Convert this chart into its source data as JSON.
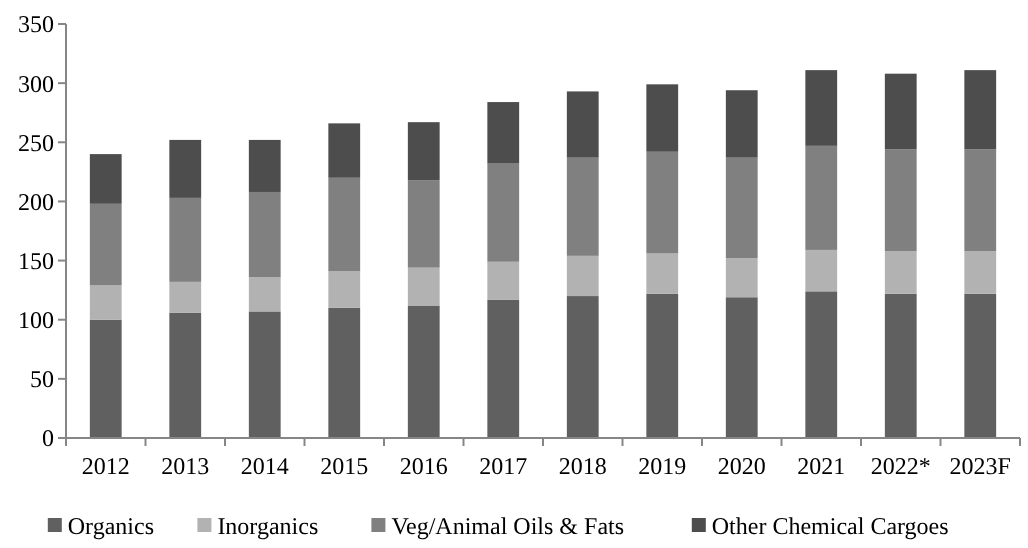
{
  "chart_data": {
    "type": "bar",
    "stacked": true,
    "categories": [
      "2012",
      "2013",
      "2014",
      "2015",
      "2016",
      "2017",
      "2018",
      "2019",
      "2020",
      "2021",
      "2022*",
      "2023F"
    ],
    "series": [
      {
        "name": "Organics",
        "color": "#606060",
        "values": [
          100,
          106,
          107,
          110,
          112,
          117,
          120,
          122,
          119,
          124,
          122,
          122
        ]
      },
      {
        "name": "Inorganics",
        "color": "#b2b2b2",
        "values": [
          29,
          26,
          29,
          31,
          32,
          32,
          34,
          34,
          33,
          35,
          36,
          36
        ]
      },
      {
        "name": "Veg/Animal Oils & Fats",
        "color": "#808080",
        "values": [
          69,
          71,
          72,
          79,
          74,
          83,
          83,
          86,
          85,
          88,
          86,
          86
        ]
      },
      {
        "name": "Other Chemical Cargoes",
        "color": "#4d4d4d",
        "values": [
          42,
          49,
          44,
          46,
          49,
          52,
          56,
          57,
          57,
          64,
          64,
          67
        ]
      }
    ],
    "ylim": [
      0,
      350
    ],
    "yticks": [
      0,
      50,
      100,
      150,
      200,
      250,
      300,
      350
    ],
    "grid": false,
    "legend": "bottom"
  }
}
